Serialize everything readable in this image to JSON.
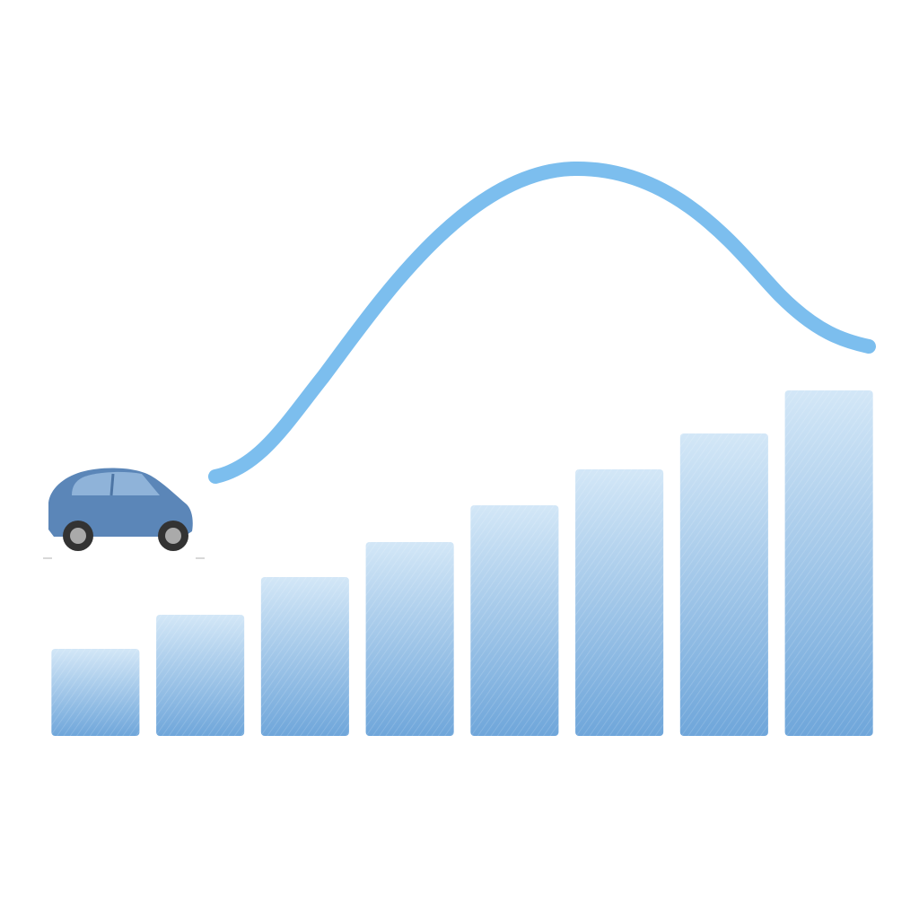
{
  "chart_data": {
    "type": "bar",
    "values": [
      97,
      135,
      177,
      216,
      257,
      297,
      337,
      385
    ],
    "categories": [
      null,
      null,
      null,
      null,
      null,
      null,
      null,
      null
    ],
    "color": "#6fa6da",
    "ylim": [
      0,
      400
    ]
  }
}
